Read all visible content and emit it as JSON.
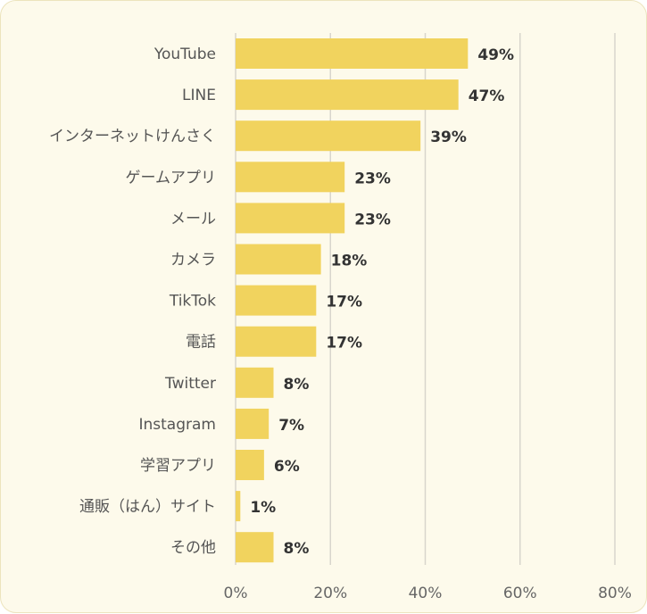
{
  "colors": {
    "bar": "#f1d35e",
    "background": "#fdfaeb"
  },
  "chart_data": {
    "type": "bar",
    "orientation": "horizontal",
    "categories": [
      "YouTube",
      "LINE",
      "インターネットけんさく",
      "ゲームアプリ",
      "メール",
      "カメラ",
      "TikTok",
      "電話",
      "Twitter",
      "Instagram",
      "学習アプリ",
      "通販（はん）サイト",
      "その他"
    ],
    "values": [
      49,
      47,
      39,
      23,
      23,
      18,
      17,
      17,
      8,
      7,
      6,
      1,
      8
    ],
    "value_labels": [
      "49%",
      "47%",
      "39%",
      "23%",
      "23%",
      "18%",
      "17%",
      "17%",
      "8%",
      "7%",
      "6%",
      "1%",
      "8%"
    ],
    "xlim": [
      0,
      80
    ],
    "x_ticks": [
      0,
      20,
      40,
      60,
      80
    ],
    "x_tick_labels": [
      "0%",
      "20%",
      "40%",
      "60%",
      "80%"
    ],
    "grid": "vertical",
    "legend": "none"
  }
}
